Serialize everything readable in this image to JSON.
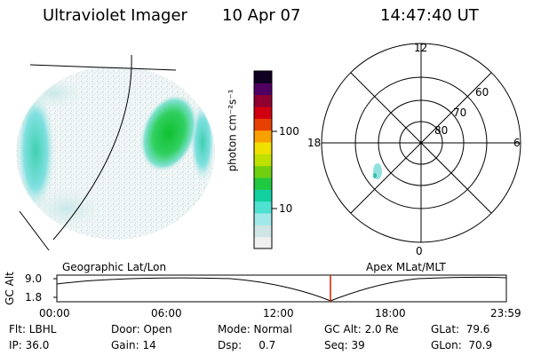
{
  "header": {
    "title": "Ultraviolet Imager",
    "date": "10 Apr 07",
    "time": "14:47:40 UT"
  },
  "colorbar": {
    "unit_label": "photon cm⁻²s⁻¹",
    "ticks": [
      "100",
      "10"
    ],
    "colors": [
      "#f0f0f0",
      "#cfe4e4",
      "#a0e8e8",
      "#50e0d0",
      "#10d0a0",
      "#20c840",
      "#70d010",
      "#c0e000",
      "#f0e000",
      "#f8a000",
      "#e84000",
      "#d00010",
      "#900030",
      "#500060",
      "#100020"
    ]
  },
  "polar": {
    "mlt_labels": [
      "12",
      "6",
      "0",
      "18"
    ],
    "lat_labels": [
      "60",
      "70",
      "80"
    ]
  },
  "timeline": {
    "left_label": "Geographic Lat/Lon",
    "right_label": "Apex MLat/MLT",
    "axis_title": "GC Alt",
    "y_ticks": [
      "9.0",
      "1.8"
    ],
    "x_ticks": [
      "00:00",
      "06:00",
      "12:00",
      "18:00",
      "23:59"
    ],
    "marker_color": "#d02000"
  },
  "info": {
    "filter": "Flt: LBHL",
    "ip": "IP: 36.0",
    "door": "Door: Open",
    "gain": "Gain: 14",
    "mode": "Mode: Normal",
    "dsp": "Dsp:     0.7",
    "gcalt": "GC Alt: 2.0 Re",
    "seq": "Seq: 39",
    "glat": "GLat:  79.6",
    "glon": "GLon:  70.9"
  }
}
